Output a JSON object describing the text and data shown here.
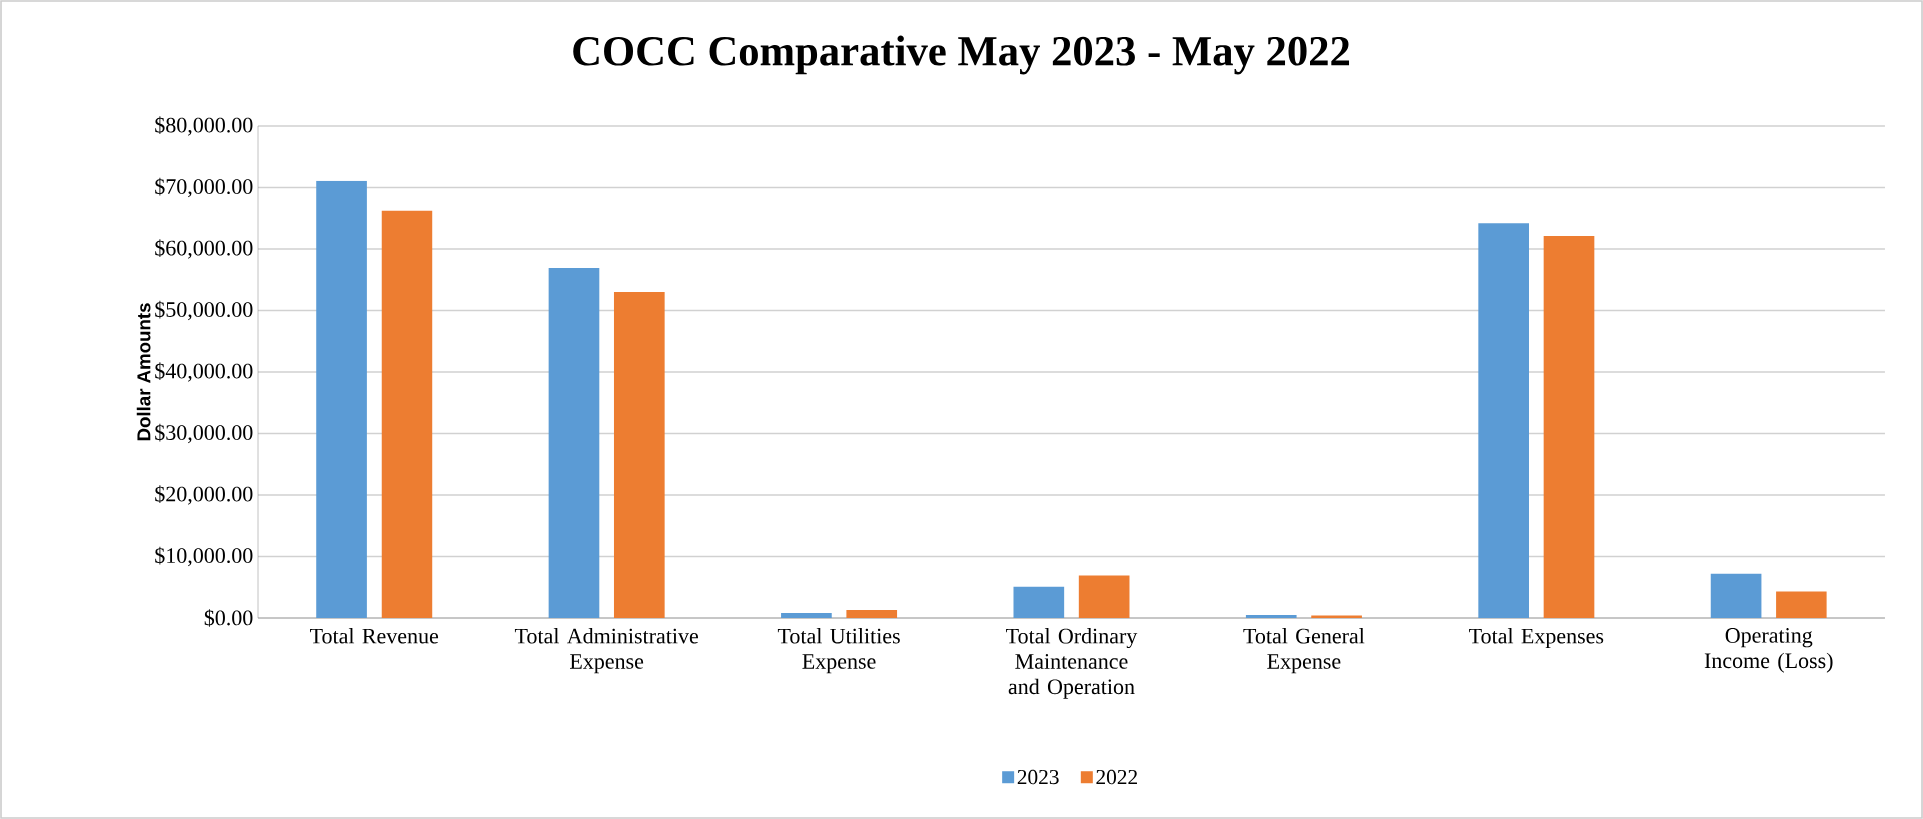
{
  "chart_data": {
    "type": "bar",
    "title": "COCC Comparative May 2023 - May 2022",
    "ylabel": "Dollar Amounts",
    "categories": [
      "Total Revenue",
      "Total Administrative Expense",
      "Total Utilities Expense",
      "Total Ordinary Maintenance and Operation",
      "Total General Expense",
      "Total Expenses",
      "Operating Income (Loss)"
    ],
    "series": [
      {
        "name": "2023",
        "color": "#5b9bd5",
        "values": [
          71100,
          56900,
          800,
          5100,
          500,
          64200,
          7200
        ]
      },
      {
        "name": "2022",
        "color": "#ed7d31",
        "values": [
          66200,
          53000,
          1300,
          6900,
          400,
          62100,
          4300
        ]
      }
    ],
    "ylim": [
      0,
      80000
    ],
    "yticks": [
      {
        "value": 0,
        "label": "$0.00"
      },
      {
        "value": 10000,
        "label": "$10,000.00"
      },
      {
        "value": 20000,
        "label": "$20,000.00"
      },
      {
        "value": 30000,
        "label": "$30,000.00"
      },
      {
        "value": 40000,
        "label": "$40,000.00"
      },
      {
        "value": 50000,
        "label": "$50,000.00"
      },
      {
        "value": 60000,
        "label": "$60,000.00"
      },
      {
        "value": 70000,
        "label": "$70,000.00"
      },
      {
        "value": 80000,
        "label": "$80,000.00"
      }
    ],
    "grid": "y",
    "legend": "bottom"
  }
}
